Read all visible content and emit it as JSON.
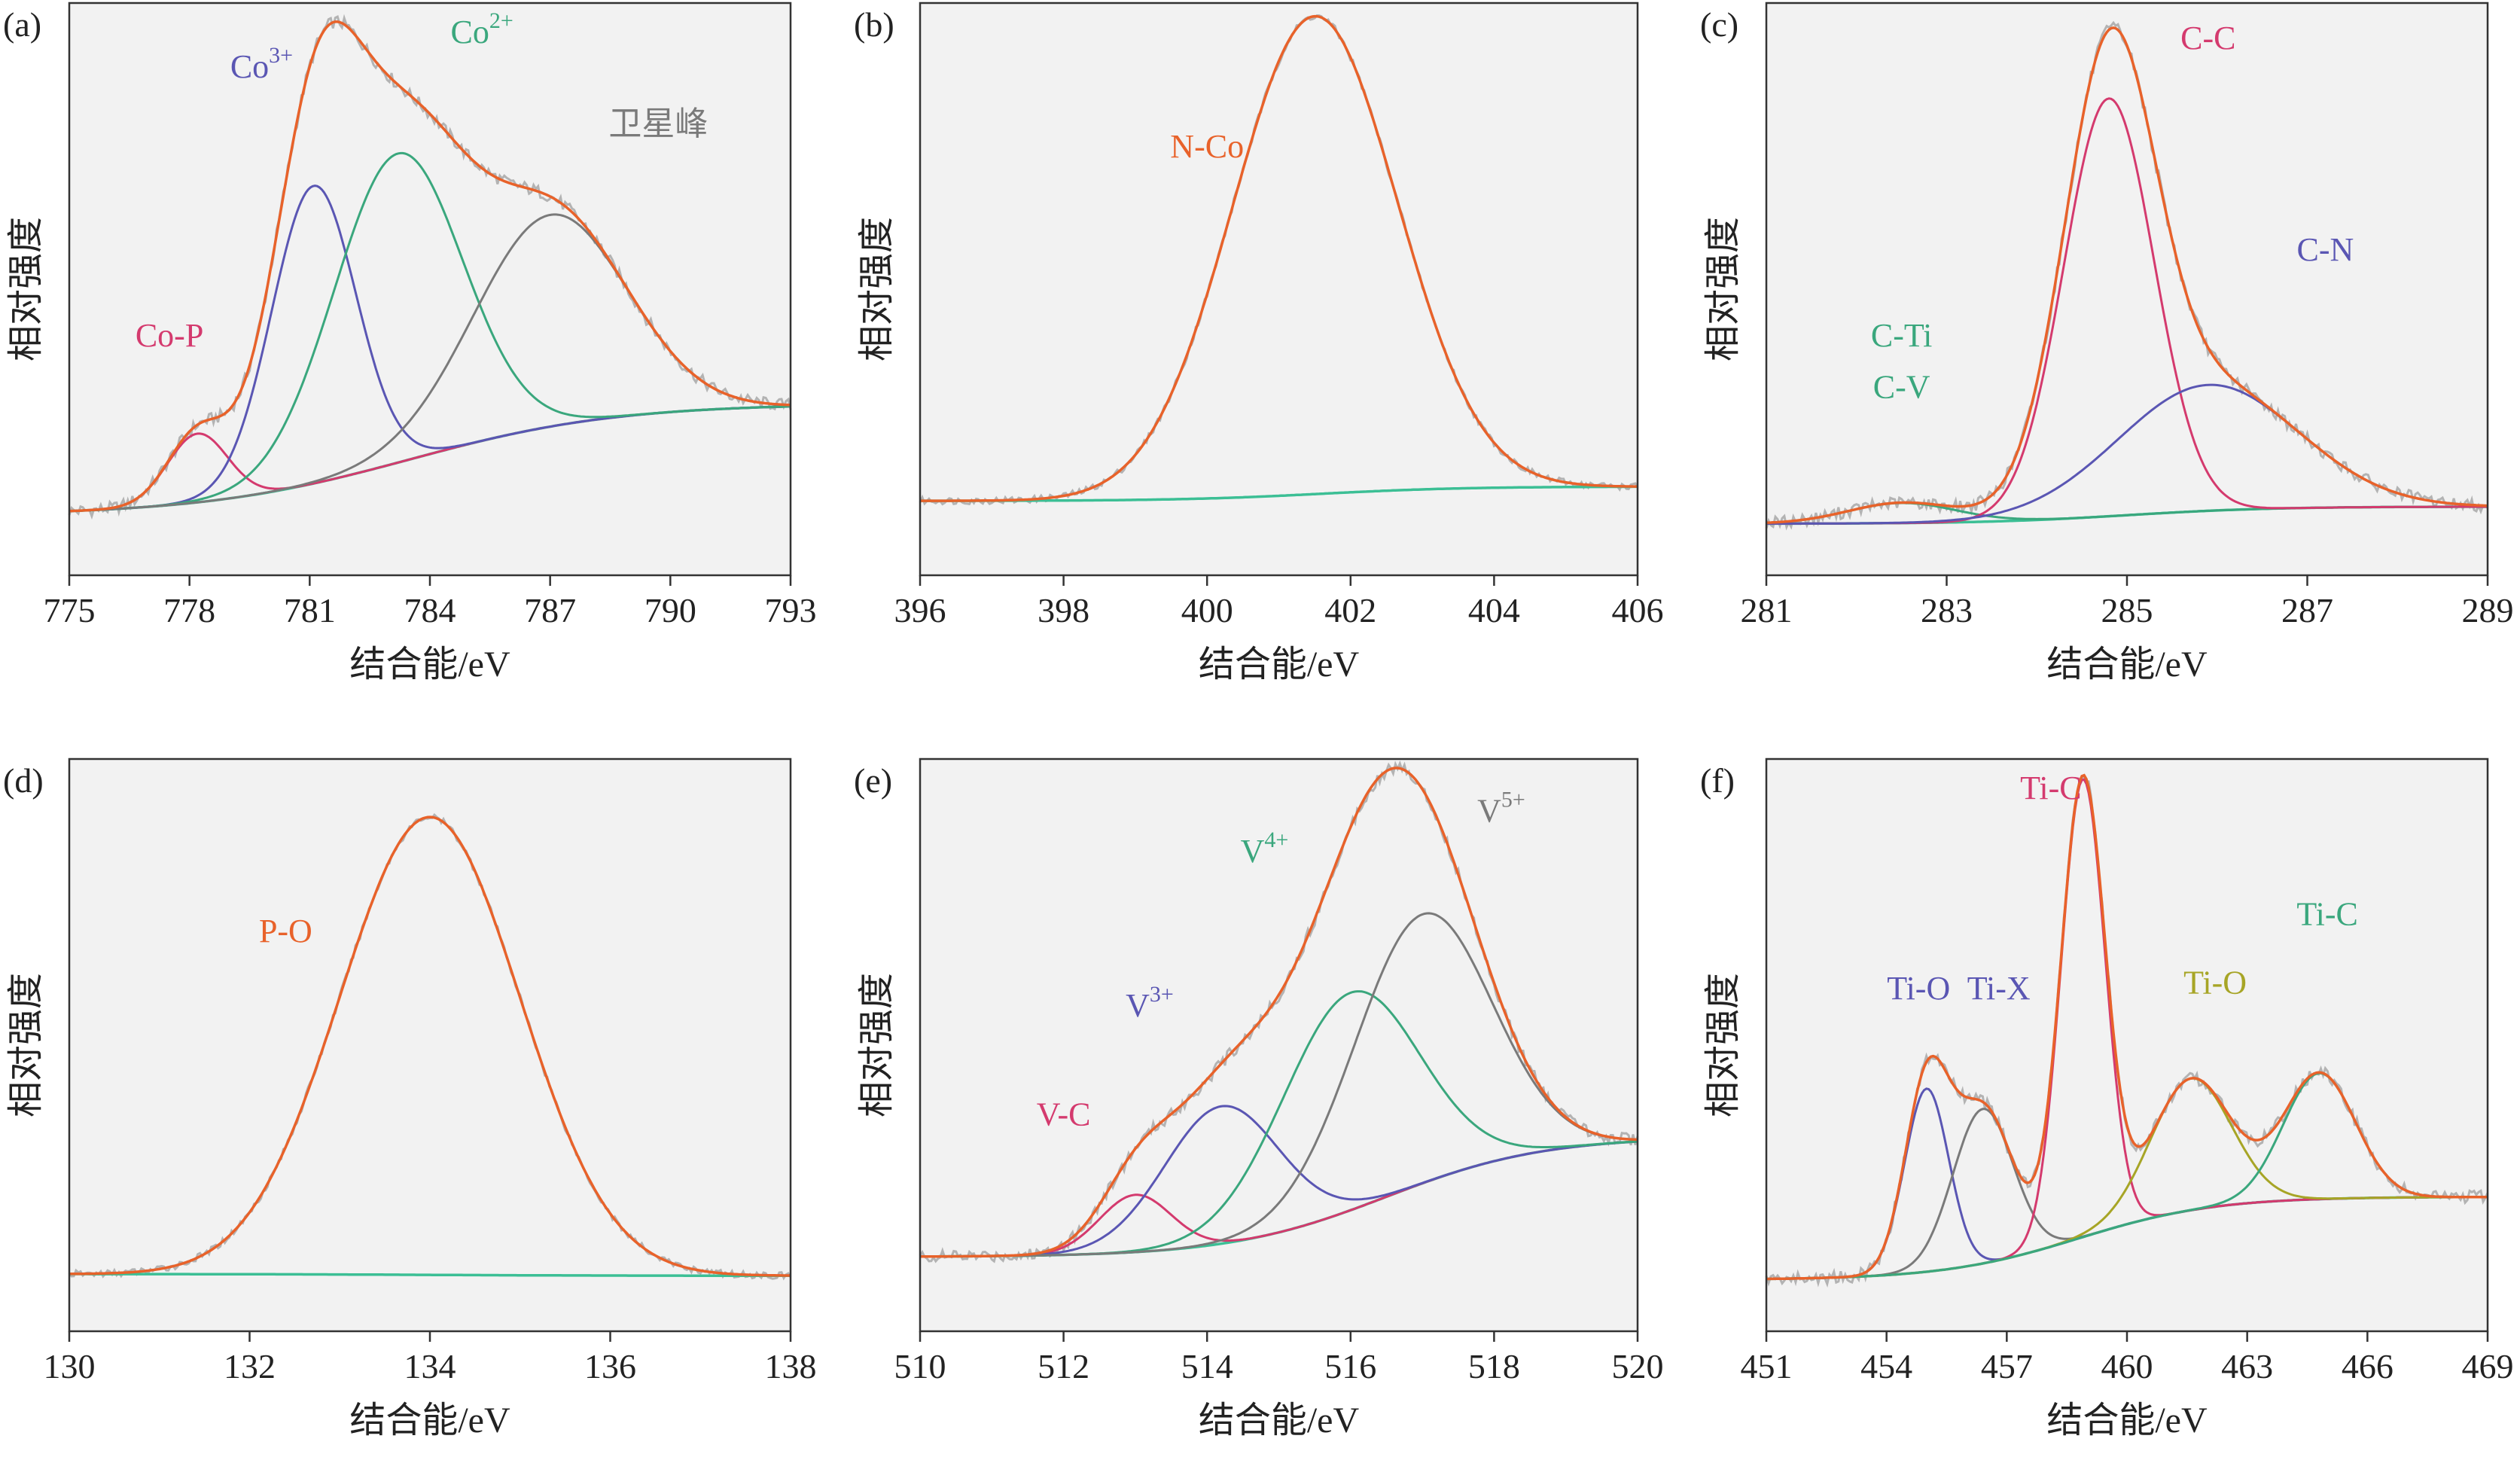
{
  "colors": {
    "raw": "#b3b3b3",
    "envelope": "#e8622a",
    "background": "#3cbf95",
    "plot_bg": "#f2f2f2",
    "magenta": "#d43a6e",
    "blue": "#5a56b3",
    "green": "#3aa77d",
    "gray": "#7a7a7a",
    "olive": "#a7a526"
  },
  "chart_data": [
    {
      "type": "line",
      "panel_label": "(a)",
      "xlabel": "结合能/eV",
      "ylabel": "相对强度",
      "xlim": [
        775,
        793
      ],
      "ylim": [
        0,
        1
      ],
      "xticks": [
        "775",
        "778",
        "781",
        "784",
        "787",
        "790",
        "793"
      ],
      "grid": false,
      "background": {
        "start": 0.105,
        "end": 0.3,
        "inflection": 783.5,
        "width": 2.6
      },
      "series": [
        {
          "center": 778.2,
          "amplitude": 0.12,
          "width": 0.75,
          "color": "magenta"
        },
        {
          "center": 781.1,
          "amplitude": 0.52,
          "width": 1.05,
          "color": "blue"
        },
        {
          "center": 783.2,
          "amplitude": 0.54,
          "width": 1.6,
          "color": "green"
        },
        {
          "center": 787.0,
          "amplitude": 0.37,
          "width": 1.9,
          "color": "gray"
        }
      ],
      "annotations": [
        {
          "text": "Co-P",
          "base": "Co-P",
          "sup": "",
          "color": "magenta",
          "x": 777.5,
          "y": 0.4
        },
        {
          "text": "Co3+",
          "base": "Co",
          "sup": "3+",
          "color": "blue",
          "x": 779.8,
          "y": 0.87
        },
        {
          "text": "Co2+",
          "base": "Co",
          "sup": "2+",
          "color": "green",
          "x": 785.3,
          "y": 0.93
        },
        {
          "text": "卫星峰",
          "base": "卫星峰",
          "sup": "",
          "color": "gray",
          "x": 789.7,
          "y": 0.77
        }
      ]
    },
    {
      "type": "line",
      "panel_label": "(b)",
      "xlabel": "结合能/eV",
      "ylabel": "相对强度",
      "xlim": [
        396,
        406
      ],
      "ylim": [
        0,
        1
      ],
      "xticks": [
        "396",
        "398",
        "400",
        "402",
        "404",
        "406"
      ],
      "grid": false,
      "background": {
        "start": 0.13,
        "end": 0.155,
        "inflection": 401.6,
        "width": 1.0
      },
      "series": [
        {
          "center": 401.5,
          "amplitude": 0.835,
          "width": 1.15,
          "color": "envelope"
        }
      ],
      "annotations": [
        {
          "text": "N-Co",
          "base": "N-Co",
          "sup": "",
          "color": "envelope",
          "x": 400.0,
          "y": 0.73
        }
      ]
    },
    {
      "type": "line",
      "panel_label": "(c)",
      "xlabel": "结合能/eV",
      "ylabel": "相对强度",
      "xlim": [
        281,
        289
      ],
      "ylim": [
        0,
        1
      ],
      "xticks": [
        "281",
        "283",
        "285",
        "287",
        "289"
      ],
      "grid": false,
      "background": {
        "start": 0.09,
        "end": 0.12,
        "inflection": 285.0,
        "width": 0.8
      },
      "series": [
        {
          "center": 282.5,
          "amplitude": 0.035,
          "width": 0.6,
          "color": "green"
        },
        {
          "center": 284.8,
          "amplitude": 0.73,
          "width": 0.5,
          "color": "magenta"
        },
        {
          "center": 285.9,
          "amplitude": 0.22,
          "width": 1.0,
          "color": "blue"
        }
      ],
      "annotations": [
        {
          "text": "C-C",
          "base": "C-C",
          "sup": "",
          "color": "magenta",
          "x": 285.9,
          "y": 0.92
        },
        {
          "text": "C-N",
          "base": "C-N",
          "sup": "",
          "color": "blue",
          "x": 287.2,
          "y": 0.55
        },
        {
          "text": "C-Ti",
          "base": "C-Ti",
          "sup": "",
          "color": "green",
          "x": 282.5,
          "y": 0.4
        },
        {
          "text": "C-V",
          "base": "C-V",
          "sup": "",
          "color": "green",
          "x": 282.5,
          "y": 0.31
        }
      ]
    },
    {
      "type": "line",
      "panel_label": "(d)",
      "xlabel": "结合能/eV",
      "ylabel": "相对强度",
      "xlim": [
        130,
        138
      ],
      "ylim": [
        0,
        1
      ],
      "xticks": [
        "130",
        "132",
        "134",
        "136",
        "138"
      ],
      "grid": false,
      "background": {
        "start": 0.1,
        "end": 0.097,
        "inflection": 134.0,
        "width": 1.0
      },
      "series": [
        {
          "center": 134.0,
          "amplitude": 0.8,
          "width": 1.0,
          "color": "envelope"
        }
      ],
      "annotations": [
        {
          "text": "P-O",
          "base": "P-O",
          "sup": "",
          "color": "envelope",
          "x": 132.4,
          "y": 0.68
        }
      ]
    },
    {
      "type": "line",
      "panel_label": "(e)",
      "xlabel": "结合能/eV",
      "ylabel": "相对强度",
      "xlim": [
        510,
        520
      ],
      "ylim": [
        0,
        1
      ],
      "xticks": [
        "510",
        "512",
        "514",
        "516",
        "518",
        "520"
      ],
      "grid": false,
      "background": {
        "start": 0.13,
        "end": 0.34,
        "inflection": 516.5,
        "width": 1.1
      },
      "series": [
        {
          "center": 513.0,
          "amplitude": 0.1,
          "width": 0.5,
          "color": "magenta"
        },
        {
          "center": 514.2,
          "amplitude": 0.24,
          "width": 0.8,
          "color": "blue"
        },
        {
          "center": 516.0,
          "amplitude": 0.38,
          "width": 0.95,
          "color": "green"
        },
        {
          "center": 517.0,
          "amplitude": 0.47,
          "width": 0.95,
          "color": "gray"
        }
      ],
      "annotations": [
        {
          "text": "V-C",
          "base": "V-C",
          "sup": "",
          "color": "magenta",
          "x": 512.0,
          "y": 0.36
        },
        {
          "text": "V3+",
          "base": "V",
          "sup": "3+",
          "color": "blue",
          "x": 513.2,
          "y": 0.55
        },
        {
          "text": "V4+",
          "base": "V",
          "sup": "4+",
          "color": "green",
          "x": 514.8,
          "y": 0.82
        },
        {
          "text": "V5+",
          "base": "V",
          "sup": "5+",
          "color": "gray",
          "x": 518.1,
          "y": 0.89
        }
      ]
    },
    {
      "type": "line",
      "panel_label": "(f)",
      "xlabel": "结合能/eV",
      "ylabel": "相对强度",
      "xlim": [
        451,
        469
      ],
      "ylim": [
        0,
        1
      ],
      "xticks": [
        "451",
        "454",
        "457",
        "460",
        "463",
        "466",
        "469"
      ],
      "grid": false,
      "background": {
        "start": 0.09,
        "end": 0.235,
        "inflection": 458.8,
        "width": 1.7
      },
      "series": [
        {
          "center": 455.0,
          "amplitude": 0.32,
          "width": 0.55,
          "color": "blue"
        },
        {
          "center": 456.4,
          "amplitude": 0.27,
          "width": 0.75,
          "color": "gray"
        },
        {
          "center": 458.9,
          "amplitude": 0.8,
          "width": 0.55,
          "color": "magenta"
        },
        {
          "center": 461.6,
          "amplitude": 0.23,
          "width": 1.0,
          "color": "olive"
        },
        {
          "center": 464.8,
          "amplitude": 0.22,
          "width": 0.9,
          "color": "green"
        }
      ],
      "annotations": [
        {
          "text": "Ti-O",
          "base": "Ti-O",
          "sup": "",
          "color": "blue",
          "x": 454.8,
          "y": 0.58
        },
        {
          "text": "Ti-X",
          "base": "Ti-X",
          "sup": "",
          "color": "blue",
          "x": 456.8,
          "y": 0.58
        },
        {
          "text": "Ti-C",
          "base": "Ti-C",
          "sup": "",
          "color": "magenta",
          "x": 458.1,
          "y": 0.93
        },
        {
          "text": "Ti-O",
          "base": "Ti-O",
          "sup": "",
          "color": "olive",
          "x": 462.2,
          "y": 0.59
        },
        {
          "text": "Ti-C",
          "base": "Ti-C",
          "sup": "",
          "color": "green",
          "x": 465.0,
          "y": 0.71
        }
      ]
    }
  ]
}
